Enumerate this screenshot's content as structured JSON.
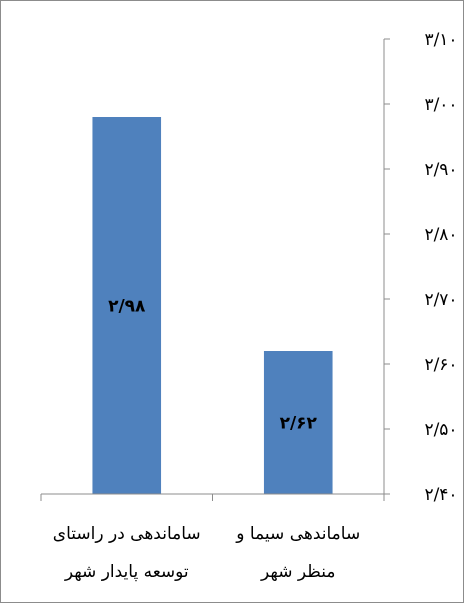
{
  "chart_data": {
    "type": "bar",
    "categories": [
      [
        "ساماندهی در راستای",
        "توسعه پایدار شهر"
      ],
      [
        "ساماندهی سیما و",
        "منظر شهر"
      ]
    ],
    "values": [
      2.98,
      2.62
    ],
    "data_labels": [
      "۲/۹۸",
      "۲/۶۲"
    ],
    "ylim": [
      2.4,
      3.1
    ],
    "yticks": [
      3.1,
      3.0,
      2.9,
      2.8,
      2.7,
      2.6,
      2.5,
      2.4
    ],
    "ytick_labels": [
      "۳/۱۰",
      "۳/۰۰",
      "۲/۹۰",
      "۲/۸۰",
      "۲/۷۰",
      "۲/۶۰",
      "۲/۵۰",
      "۲/۴۰"
    ],
    "y_axis_side": "right",
    "bar_color": "#4f81bd",
    "grid": false,
    "legend": "none",
    "title": "",
    "xlabel": "",
    "ylabel": ""
  }
}
